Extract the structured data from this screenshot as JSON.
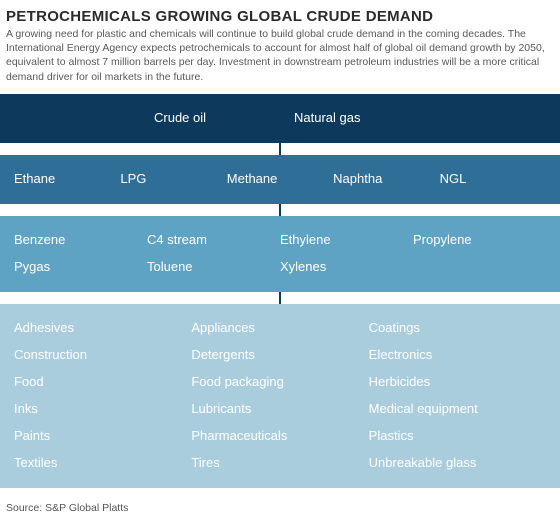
{
  "header": {
    "title": "PETROCHEMICALS GROWING GLOBAL CRUDE DEMAND",
    "subtitle": "A growing need for plastic and chemicals will continue to build global crude demand in the coming decades. The International Energy Agency expects petrochemicals to account for almost half of global oil demand growth by 2050, equivalent to almost 7 million barrels per day. Investment in downstream petroleum industries will be a more critical demand driver for oil markets in the future."
  },
  "diagram": {
    "type": "tree",
    "background_color": "#ffffff",
    "connector_color": "#0d3a5c",
    "tiers": [
      {
        "id": "feedstock-raw",
        "bg_color": "#0d3a5c",
        "text_color": "#ffffff",
        "columns": 2,
        "layout": "inset-pair",
        "items": [
          "Crude oil",
          "Natural gas"
        ]
      },
      {
        "id": "primary-products",
        "bg_color": "#2f6f97",
        "text_color": "#ffffff",
        "columns": 5,
        "items": [
          "Ethane",
          "LPG",
          "Methane",
          "Naphtha",
          "NGL"
        ]
      },
      {
        "id": "intermediates",
        "bg_color": "#5fa3c4",
        "text_color": "#ffffff",
        "columns": 4,
        "items": [
          "Benzene",
          "C4 stream",
          "Ethylene",
          "Propylene",
          "Pygas",
          "Toluene",
          "Xylenes"
        ]
      },
      {
        "id": "end-uses",
        "bg_color": "#a9cddd",
        "text_color": "#ffffff",
        "columns": 3,
        "items": [
          "Adhesives",
          "Appliances",
          "Coatings",
          "Construction",
          "Detergents",
          "Electronics",
          "Food",
          "Food packaging",
          "Herbicides",
          "Inks",
          "Lubricants",
          "Medical equipment",
          "Paints",
          "Pharmaceuticals",
          "Plastics",
          "Textiles",
          "Tires",
          "Unbreakable glass"
        ]
      }
    ]
  },
  "footer": {
    "source": "Source: S&P Global Platts"
  }
}
